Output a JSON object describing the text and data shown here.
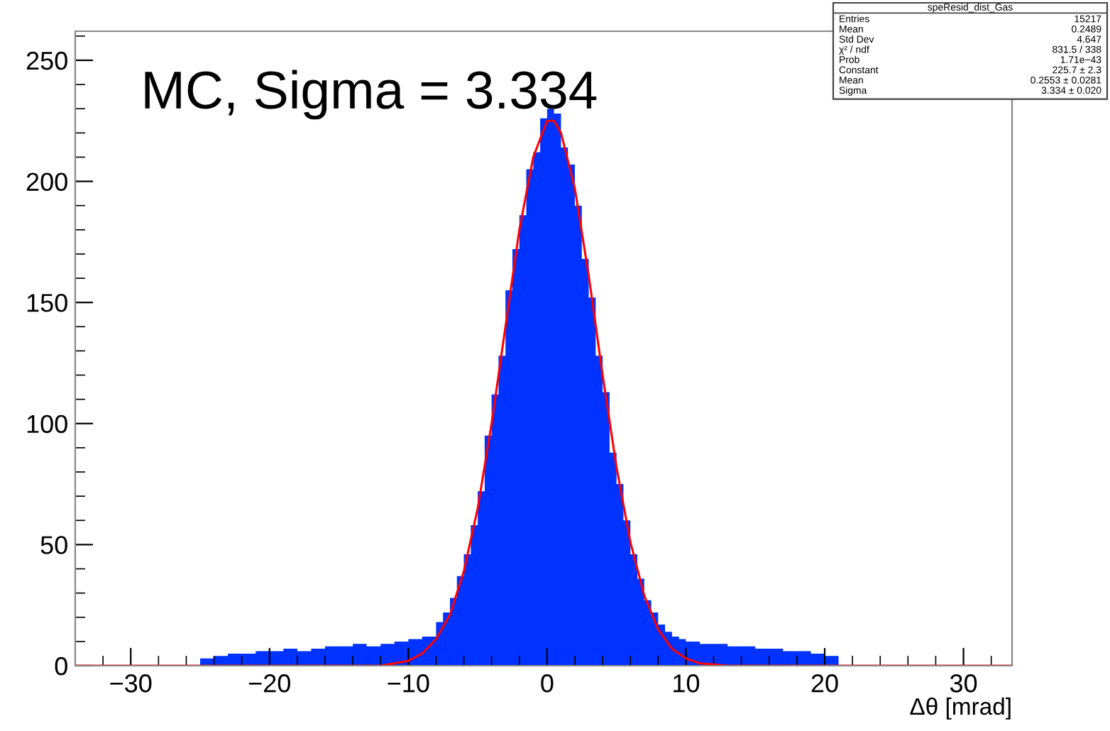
{
  "chart_data": {
    "type": "histogram",
    "xlabel": "Δθ [mrad]",
    "xlim": [
      -34,
      33.5
    ],
    "xticks": [
      {
        "value": -30,
        "label": "−30"
      },
      {
        "value": -20,
        "label": "−20"
      },
      {
        "value": -10,
        "label": "−10"
      },
      0,
      10,
      20,
      30
    ],
    "ylim": [
      0,
      262
    ],
    "yticks": [
      0,
      50,
      100,
      150,
      200,
      250
    ],
    "grid": false,
    "legend": false,
    "annotations": [
      "MC, Sigma = 3.334",
      "speResid_dist_Gas",
      "Entries",
      "15217",
      "Mean",
      "0.2489",
      "Std Dev",
      "4.647",
      "χ² / ndf",
      "831.5 / 338",
      "Prob",
      "1.71e−43",
      "Constant",
      "225.7 ± 2.3",
      "Mean",
      "0.2553 ± 0.0281",
      "Sigma",
      "3.334 ± 0.020"
    ],
    "series": [
      {
        "color": "#0033ff",
        "bins": [
          -25,
          -24,
          -23,
          -22,
          -21,
          -20,
          -19,
          -18,
          -17,
          -16,
          -15,
          -14,
          -13,
          -12,
          -11,
          -10,
          -9,
          -8,
          -7.5,
          -7,
          -6.5,
          -6,
          -5.5,
          -5,
          -4.5,
          -4,
          -3.5,
          -3,
          -2.5,
          -2,
          -1.5,
          -1,
          -0.5,
          0,
          0.5,
          1,
          1.5,
          2,
          2.5,
          3,
          3.5,
          4,
          4.5,
          5,
          5.5,
          6,
          6.5,
          7,
          7.5,
          8,
          8.5,
          9,
          9.5,
          10,
          11,
          12,
          13,
          14,
          15,
          16,
          17,
          18,
          19,
          20,
          21
        ],
        "values": [
          3,
          4,
          5,
          5,
          6,
          6,
          7,
          6,
          7,
          8,
          8,
          9,
          8,
          9,
          10,
          11,
          12,
          18,
          22,
          28,
          37,
          46,
          58,
          72,
          95,
          112,
          128,
          155,
          172,
          186,
          205,
          212,
          226,
          230,
          228,
          214,
          207,
          190,
          168,
          152,
          128,
          113,
          88,
          75,
          60,
          46,
          36,
          27,
          22,
          17,
          14,
          12,
          11,
          10,
          9,
          9,
          8,
          8,
          7,
          7,
          6,
          6,
          5,
          4
        ]
      },
      {
        "type": "line",
        "color": "#ff0000",
        "x": [
          -34,
          -12,
          -10,
          -9,
          -8,
          -7,
          -6,
          -5,
          -4,
          -3,
          -2,
          -1,
          0,
          0.5,
          1,
          2,
          3,
          4,
          5,
          6,
          7,
          8,
          9,
          10,
          11,
          13,
          33.5
        ],
        "values": [
          0,
          0,
          2,
          5,
          11,
          21,
          39,
          65,
          100,
          140,
          180,
          210,
          225,
          225,
          220,
          197,
          161,
          120,
          82,
          51,
          29,
          15,
          7,
          3,
          1,
          0,
          0
        ]
      }
    ]
  }
}
